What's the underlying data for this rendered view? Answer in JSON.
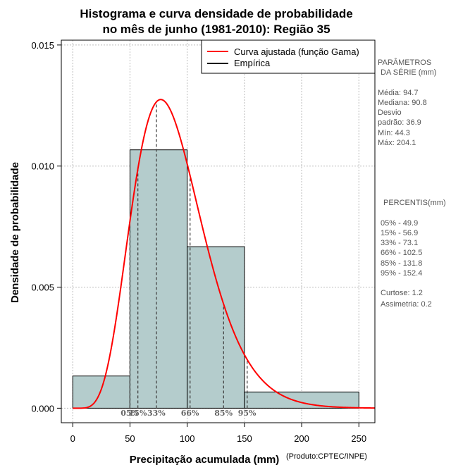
{
  "chart_data": {
    "type": "bar",
    "title_lines": [
      "Histograma e curva densidade de probabilidade",
      "no mês de junho (1981-2010): Região 35"
    ],
    "xlabel": "Precipitação acumulada (mm)",
    "ylabel": "Densidade de probabilidade",
    "credit": "(Produto:CPTEC/INPE)",
    "xlim": [
      -10,
      264
    ],
    "ylim": [
      -0.0006,
      0.0152
    ],
    "x_ticks": [
      0,
      50,
      100,
      150,
      200,
      250
    ],
    "x_tick_labels": [
      "0",
      "50",
      "100",
      "150",
      "200",
      "250"
    ],
    "y_ticks": [
      0.0,
      0.005,
      0.01,
      0.015
    ],
    "y_tick_labels": [
      "0.000",
      "0.005",
      "0.010",
      "0.015"
    ],
    "grid": true,
    "histogram": {
      "name": "Empírica",
      "bins": [
        {
          "from": 0,
          "to": 50,
          "density": 0.00133
        },
        {
          "from": 50,
          "to": 100,
          "density": 0.01067
        },
        {
          "from": 100,
          "to": 150,
          "density": 0.00667
        },
        {
          "from": 150,
          "to": 250,
          "density": 0.00067
        }
      ],
      "color": "#b4cccc"
    },
    "curve": {
      "name": "Curva ajustada (função Gama)",
      "distribution": "gamma",
      "shape": 7.2,
      "scale": 12.4,
      "color": "#ff0000"
    },
    "legend": {
      "position": "top-right",
      "entries": [
        {
          "label": "Curva ajustada (função Gama)",
          "color": "#ff0000"
        },
        {
          "label": "Empírica",
          "color": "#000000"
        }
      ]
    },
    "percentile_lines": [
      {
        "label": "05%",
        "value": 49.9
      },
      {
        "label": "15%",
        "value": 56.9
      },
      {
        "label": "33%",
        "value": 73.1
      },
      {
        "label": "66%",
        "value": 102.5
      },
      {
        "label": "85%",
        "value": 131.8
      },
      {
        "label": "95%",
        "value": 152.4
      }
    ]
  },
  "side_panel": {
    "params_title": [
      "PARÂMETROS",
      "DA SÉRIE (mm)"
    ],
    "params": [
      "Média:  94.7",
      "Mediana:  90.8",
      "Desvio",
      "padrão:  36.9",
      "Mín:  44.3",
      "Máx:  204.1"
    ],
    "percentis_title": "PERCENTIS(mm)",
    "percentis": [
      "05% -  49.9",
      "15% -  56.9",
      "33% -  73.1",
      "66% -  102.5",
      "85% -  131.8",
      "95% -  152.4"
    ],
    "stats": [
      "Curtose:  1.2",
      "Assimetria:  0.2"
    ]
  }
}
